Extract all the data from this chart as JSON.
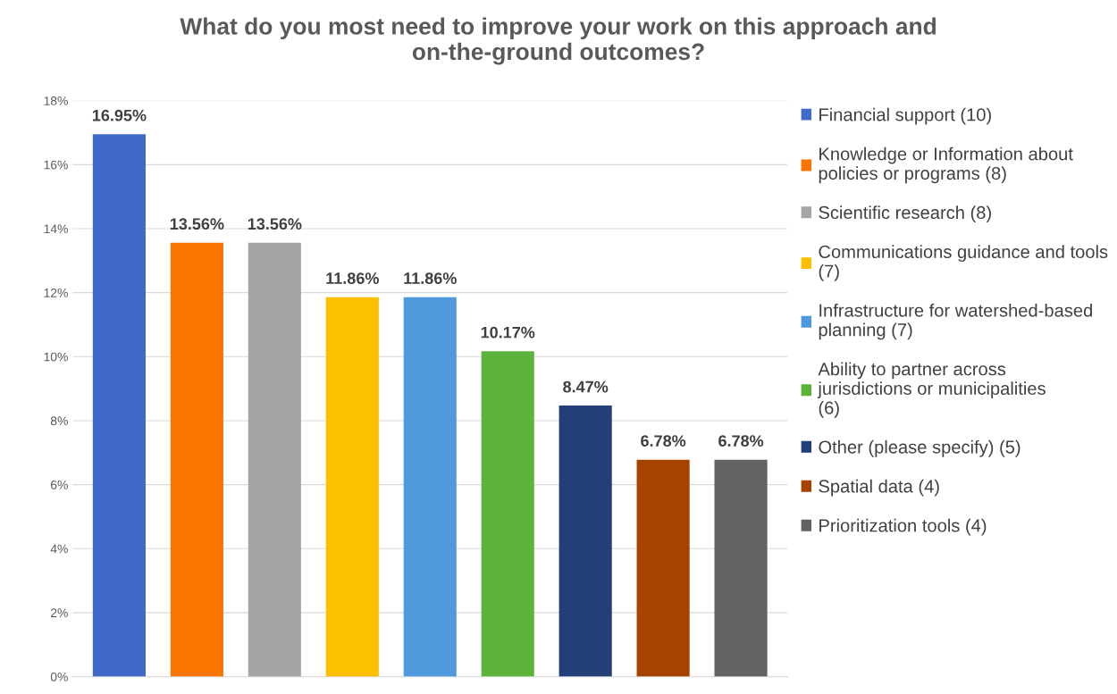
{
  "chart_data": {
    "type": "bar",
    "title": "What do you most need to improve your work on this approach and on-the-ground outcomes?",
    "categories": [
      null,
      null,
      null,
      null,
      null,
      null,
      null,
      null,
      null
    ],
    "series": [
      {
        "name": "Financial support (10)",
        "color": "#4169c8",
        "values": [
          16.95,
          null,
          null,
          null,
          null,
          null,
          null,
          null,
          null
        ],
        "value_labels": [
          "16.95%",
          null,
          null,
          null,
          null,
          null,
          null,
          null,
          null
        ]
      },
      {
        "name": "Knowledge or Information about policies or programs (8)",
        "color": "#fa7400",
        "values": [
          null,
          13.56,
          null,
          null,
          null,
          null,
          null,
          null,
          null
        ],
        "value_labels": [
          null,
          "13.56%",
          null,
          null,
          null,
          null,
          null,
          null,
          null
        ]
      },
      {
        "name": "Scientific research (8)",
        "color": "#a5a5a5",
        "values": [
          null,
          null,
          13.56,
          null,
          null,
          null,
          null,
          null,
          null
        ],
        "value_labels": [
          null,
          null,
          "13.56%",
          null,
          null,
          null,
          null,
          null,
          null
        ]
      },
      {
        "name": "Communications guidance and tools (7)",
        "color": "#fdc000",
        "values": [
          null,
          null,
          null,
          11.86,
          null,
          null,
          null,
          null,
          null
        ],
        "value_labels": [
          null,
          null,
          null,
          "11.86%",
          null,
          null,
          null,
          null,
          null
        ]
      },
      {
        "name": "Infrastructure for watershed-based planning (7)",
        "color": "#4f99dc",
        "values": [
          null,
          null,
          null,
          null,
          11.86,
          null,
          null,
          null,
          null
        ],
        "value_labels": [
          null,
          null,
          null,
          null,
          "11.86%",
          null,
          null,
          null,
          null
        ]
      },
      {
        "name": "Ability to partner across jurisdictions or municipalities (6)",
        "color": "#5bb33a",
        "values": [
          null,
          null,
          null,
          null,
          null,
          10.17,
          null,
          null,
          null
        ],
        "value_labels": [
          null,
          null,
          null,
          null,
          null,
          "10.17%",
          null,
          null,
          null
        ]
      },
      {
        "name": "Other (please specify) (5)",
        "color": "#233f7a",
        "values": [
          null,
          null,
          null,
          null,
          null,
          null,
          8.47,
          null,
          null
        ],
        "value_labels": [
          null,
          null,
          null,
          null,
          null,
          null,
          "8.47%",
          null,
          null
        ]
      },
      {
        "name": "Spatial data (4)",
        "color": "#a64300",
        "values": [
          null,
          null,
          null,
          null,
          null,
          null,
          null,
          6.78,
          null
        ],
        "value_labels": [
          null,
          null,
          null,
          null,
          null,
          null,
          null,
          "6.78%",
          null
        ]
      },
      {
        "name": "Prioritization tools (4)",
        "color": "#626262",
        "values": [
          null,
          null,
          null,
          null,
          null,
          null,
          null,
          null,
          6.78
        ],
        "value_labels": [
          null,
          null,
          null,
          null,
          null,
          null,
          null,
          null,
          "6.78%"
        ]
      }
    ],
    "ylim": [
      0,
      18
    ],
    "yticks": [
      {
        "value": 0,
        "label": "0%"
      },
      {
        "value": 2,
        "label": "2%"
      },
      {
        "value": 4,
        "label": "4%"
      },
      {
        "value": 6,
        "label": "6%"
      },
      {
        "value": 8,
        "label": "8%"
      },
      {
        "value": 10,
        "label": "10%"
      },
      {
        "value": 12,
        "label": "12%"
      },
      {
        "value": 14,
        "label": "14%"
      },
      {
        "value": 16,
        "label": "16%"
      },
      {
        "value": 18,
        "label": "18%"
      }
    ],
    "grid": "y",
    "legend": "right",
    "tick_labels": "y"
  }
}
